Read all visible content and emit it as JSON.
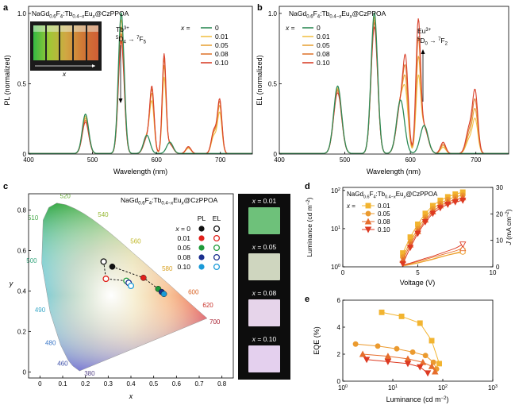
{
  "panel_labels": [
    "a",
    "b",
    "c",
    "d",
    "e"
  ],
  "colors": {
    "x0": "#2e8b57",
    "x001": "#f2c14a",
    "x005": "#e8a33c",
    "x008": "#e07a35",
    "x010": "#d9412b",
    "eqe1": "#f2b430",
    "eqe2": "#eb9a2e",
    "eqe3": "#e66d2d",
    "eqe4": "#dd3a22"
  },
  "chart_data": [
    {
      "panel": "a",
      "type": "line",
      "title_parts": {
        "main": "NaGd",
        "s1": "0.6",
        "mid1": "F",
        "s2": "4",
        "mid2": ":Tb",
        "s3": "0.4−",
        "s3x": "x",
        "mid3": "Eu",
        "s4x": "x",
        "end": "@CzPPOA"
      },
      "xlabel": "Wavelength (nm)",
      "ylabel": "PL (normalized)",
      "xlim": [
        400,
        750
      ],
      "ylim": [
        0,
        1.05
      ],
      "xticks": [
        "400",
        "500",
        "600",
        "700"
      ],
      "yticks": [
        "0",
        "0.5",
        "1.0"
      ],
      "legend_title": "x =",
      "legend": [
        "0",
        "0.01",
        "0.05",
        "0.08",
        "0.10"
      ],
      "annotation": {
        "l1": "Tb3+",
        "l2": "5D4 → 7F5",
        "arrow": "down"
      },
      "inset_label": "x",
      "series": [
        {
          "name": "0",
          "tb_scale": 1.0,
          "eu_scale": 0.0
        },
        {
          "name": "0.01",
          "tb_scale": 0.95,
          "eu_scale": 0.62
        },
        {
          "name": "0.05",
          "tb_scale": 0.9,
          "eu_scale": 0.72
        },
        {
          "name": "0.08",
          "tb_scale": 0.85,
          "eu_scale": 0.78
        },
        {
          "name": "0.10",
          "tb_scale": 0.8,
          "eu_scale": 0.82
        }
      ],
      "tb_peaks": [
        [
          489,
          0.28,
          5
        ],
        [
          545,
          1.0,
          4.5
        ],
        [
          585,
          0.13,
          5
        ],
        [
          621,
          0.08,
          5
        ]
      ],
      "eu_peaks": [
        [
          593,
          0.55,
          3.5
        ],
        [
          612,
          0.85,
          3
        ],
        [
          650,
          0.06,
          4
        ],
        [
          699,
          0.46,
          3.5
        ],
        [
          690,
          0.2,
          4
        ]
      ]
    },
    {
      "panel": "b",
      "type": "line",
      "title_parts": {
        "main": "NaGd",
        "s1": "0.6",
        "mid1": "F",
        "s2": "4",
        "mid2": ":Tb",
        "s3": "0.4−",
        "s3x": "x",
        "mid3": "Eu",
        "s4x": "x",
        "end": "@CzPPOA"
      },
      "xlabel": "Wavelength (nm)",
      "ylabel": "EL (normalized)",
      "xlim": [
        400,
        750
      ],
      "ylim": [
        0,
        1.05
      ],
      "xticks": [
        "400",
        "500",
        "600",
        "700"
      ],
      "yticks": [
        "0",
        "0.5",
        "1.0"
      ],
      "legend_title": "x =",
      "legend": [
        "0",
        "0.01",
        "0.05",
        "0.08",
        "0.10"
      ],
      "annotation": {
        "l1": "Eu3+",
        "l2": "5D0 → 7F2",
        "arrow": "up"
      },
      "series": [
        {
          "name": "0",
          "tb_scale": 1.0,
          "eu_scale": 0.0
        },
        {
          "name": "0.01",
          "tb_scale": 0.97,
          "eu_scale": 0.55
        },
        {
          "name": "0.05",
          "tb_scale": 0.95,
          "eu_scale": 0.7
        },
        {
          "name": "0.08",
          "tb_scale": 0.93,
          "eu_scale": 0.85
        },
        {
          "name": "0.10",
          "tb_scale": 0.9,
          "eu_scale": 1.0
        }
      ],
      "tb_peaks": [
        [
          489,
          0.48,
          6
        ],
        [
          545,
          1.0,
          5
        ],
        [
          585,
          0.38,
          6
        ],
        [
          621,
          0.2,
          6
        ]
      ],
      "eu_peaks": [
        [
          593,
          0.55,
          4
        ],
        [
          612,
          0.9,
          3.5
        ],
        [
          650,
          0.08,
          4
        ],
        [
          699,
          0.42,
          4
        ],
        [
          690,
          0.18,
          5
        ]
      ]
    },
    {
      "panel": "c",
      "type": "scatter",
      "title_parts": {
        "main": "NaGd",
        "s1": "0.6",
        "mid1": "F",
        "s2": "4",
        "mid2": ":Tb",
        "s3": "0.4−",
        "s3x": "x",
        "mid3": "Eu",
        "s4x": "x",
        "end": "@CzPPOA"
      },
      "xlabel": "x",
      "ylabel": "y",
      "xlim": [
        -0.05,
        0.85
      ],
      "ylim": [
        -0.03,
        0.88
      ],
      "xticks": [
        "0",
        "0.1",
        "0.2",
        "0.3",
        "0.4",
        "0.5",
        "0.6",
        "0.7",
        "0.8"
      ],
      "yticks": [
        "0",
        "0.2",
        "0.4",
        "0.6",
        "0.8"
      ],
      "wavelength_labels": [
        {
          "t": "380",
          "x": 0.174,
          "y": 0.005,
          "color": "#5a4a8a"
        },
        {
          "t": "460",
          "x": 0.144,
          "y": 0.03,
          "color": "#3c4fa8"
        },
        {
          "t": "480",
          "x": 0.091,
          "y": 0.133,
          "color": "#3c78c8"
        },
        {
          "t": "490",
          "x": 0.045,
          "y": 0.295,
          "color": "#3aa8c8"
        },
        {
          "t": "500",
          "x": 0.008,
          "y": 0.538,
          "color": "#3aa880"
        },
        {
          "t": "510",
          "x": 0.014,
          "y": 0.75,
          "color": "#46a848"
        },
        {
          "t": "520",
          "x": 0.074,
          "y": 0.834,
          "color": "#6ab03a"
        },
        {
          "t": "540",
          "x": 0.23,
          "y": 0.754,
          "color": "#94b830"
        },
        {
          "t": "560",
          "x": 0.373,
          "y": 0.624,
          "color": "#c0b828"
        },
        {
          "t": "580",
          "x": 0.512,
          "y": 0.487,
          "color": "#d8a020"
        },
        {
          "t": "600",
          "x": 0.627,
          "y": 0.372,
          "color": "#d86020"
        },
        {
          "t": "620",
          "x": 0.691,
          "y": 0.308,
          "color": "#c83028"
        },
        {
          "t": "700",
          "x": 0.735,
          "y": 0.265,
          "color": "#a82030"
        }
      ],
      "legend_cols": [
        "PL",
        "EL"
      ],
      "legend_rows": [
        "x = 0",
        "0.01",
        "0.05",
        "0.08",
        "0.10"
      ],
      "legend_colors": [
        "#111111",
        "#e0201a",
        "#1f9a3a",
        "#1a2f8e",
        "#1a9ad8"
      ],
      "pl_points": [
        {
          "x": 0.318,
          "y": 0.52,
          "color": "#111111"
        },
        {
          "x": 0.455,
          "y": 0.465,
          "color": "#e0201a"
        },
        {
          "x": 0.52,
          "y": 0.41,
          "color": "#1f9a3a"
        },
        {
          "x": 0.535,
          "y": 0.395,
          "color": "#1a2f8e"
        },
        {
          "x": 0.545,
          "y": 0.385,
          "color": "#1a9ad8"
        }
      ],
      "el_points": [
        {
          "x": 0.28,
          "y": 0.545,
          "color": "#111111"
        },
        {
          "x": 0.29,
          "y": 0.46,
          "color": "#e0201a"
        },
        {
          "x": 0.38,
          "y": 0.45,
          "color": "#1f9a3a"
        },
        {
          "x": 0.39,
          "y": 0.44,
          "color": "#1a2f8e"
        },
        {
          "x": 0.4,
          "y": 0.425,
          "color": "#1a9ad8"
        }
      ],
      "photos": [
        {
          "label": "x = 0.01",
          "color": "#6ec17a"
        },
        {
          "label": "x = 0.05",
          "color": "#cfd6bf"
        },
        {
          "label": "x = 0.08",
          "color": "#e6d4ea"
        },
        {
          "label": "x = 0.10",
          "color": "#e4d0ee"
        }
      ]
    },
    {
      "panel": "d",
      "type": "line",
      "title_parts": {
        "main": "NaGd",
        "s1": "0.6",
        "mid1": "F",
        "s2": "4",
        "mid2": ":Tb",
        "s3": "0.4−",
        "s3x": "x",
        "mid3": "Eu",
        "s4x": "x",
        "end": "@CzPPOA"
      },
      "xlabel": "Voltage (V)",
      "ylabel": "Luminance (cd m−2)",
      "y2label": "J (mA cm−2)",
      "xlim": [
        0,
        10
      ],
      "ylim_log": [
        1,
        120
      ],
      "y2lim": [
        0,
        30
      ],
      "xticks": [
        "0",
        "5",
        "10"
      ],
      "yticks": [
        "10^0",
        "10^1",
        "10^2"
      ],
      "y2ticks": [
        "0",
        "10",
        "20",
        "30"
      ],
      "legend_title": "x =",
      "legend": [
        "0.01",
        "0.05",
        "0.08",
        "0.10"
      ],
      "series": [
        {
          "name": "0.01",
          "marker": "square",
          "x": [
            4.0,
            4.5,
            5.0,
            5.5,
            6.0,
            6.5,
            7.0,
            7.5,
            8.0
          ],
          "lum": [
            2.3,
            6.0,
            13,
            25,
            40,
            55,
            68,
            80,
            90
          ],
          "j": [
            0.5,
            1.0,
            1.6,
            2.3,
            3.0,
            3.8,
            4.5,
            5.2,
            6.0
          ]
        },
        {
          "name": "0.05",
          "marker": "circle",
          "x": [
            4.0,
            4.5,
            5.0,
            5.5,
            6.0,
            6.5,
            7.0,
            7.5,
            8.0
          ],
          "lum": [
            1.8,
            4.5,
            10,
            20,
            33,
            46,
            58,
            68,
            75
          ],
          "j": [
            0.3,
            0.8,
            1.4,
            2.1,
            2.8,
            3.6,
            4.4,
            5.0,
            5.6
          ]
        },
        {
          "name": "0.08",
          "marker": "triangle-up",
          "x": [
            4.0,
            4.5,
            5.0,
            5.5,
            6.0,
            6.5,
            7.0,
            7.5,
            8.0
          ],
          "lum": [
            1.5,
            3.8,
            8.5,
            17,
            28,
            40,
            50,
            58,
            65
          ],
          "j": [
            0.6,
            1.2,
            2.0,
            2.8,
            3.6,
            4.4,
            5.2,
            6.0,
            7.0
          ]
        },
        {
          "name": "0.10",
          "marker": "triangle-down",
          "x": [
            4.0,
            4.5,
            5.0,
            5.5,
            6.0,
            6.5,
            7.0,
            7.5,
            8.0
          ],
          "lum": [
            1.2,
            3.2,
            7.5,
            15,
            25,
            35,
            43,
            50,
            55
          ],
          "j": [
            0.7,
            1.4,
            2.3,
            3.2,
            4.0,
            5.0,
            6.0,
            7.0,
            8.5
          ]
        }
      ]
    },
    {
      "panel": "e",
      "type": "line",
      "xlabel": "Luminance (cd m−2)",
      "ylabel": "EQE (%)",
      "xlim_log": [
        1,
        1000
      ],
      "ylim": [
        0,
        6
      ],
      "xticks": [
        "10^0",
        "10^1",
        "10^2",
        "10^3"
      ],
      "yticks": [
        "0",
        "2",
        "4",
        "6"
      ],
      "series": [
        {
          "name": "0.01",
          "marker": "square",
          "x": [
            6,
            15,
            35,
            60,
            85
          ],
          "y": [
            5.1,
            4.8,
            4.3,
            3.0,
            1.3
          ]
        },
        {
          "name": "0.05",
          "marker": "circle",
          "x": [
            1.8,
            5,
            12,
            25,
            45,
            65,
            75
          ],
          "y": [
            2.75,
            2.6,
            2.4,
            2.15,
            1.9,
            1.4,
            0.9
          ]
        },
        {
          "name": "0.08",
          "marker": "triangle-up",
          "x": [
            2.5,
            8,
            20,
            40,
            60,
            70
          ],
          "y": [
            2.0,
            1.85,
            1.65,
            1.4,
            1.1,
            0.7
          ]
        },
        {
          "name": "0.10",
          "marker": "triangle-down",
          "x": [
            3,
            8,
            20,
            35,
            50
          ],
          "y": [
            1.6,
            1.45,
            1.3,
            1.05,
            0.6
          ]
        }
      ]
    }
  ]
}
